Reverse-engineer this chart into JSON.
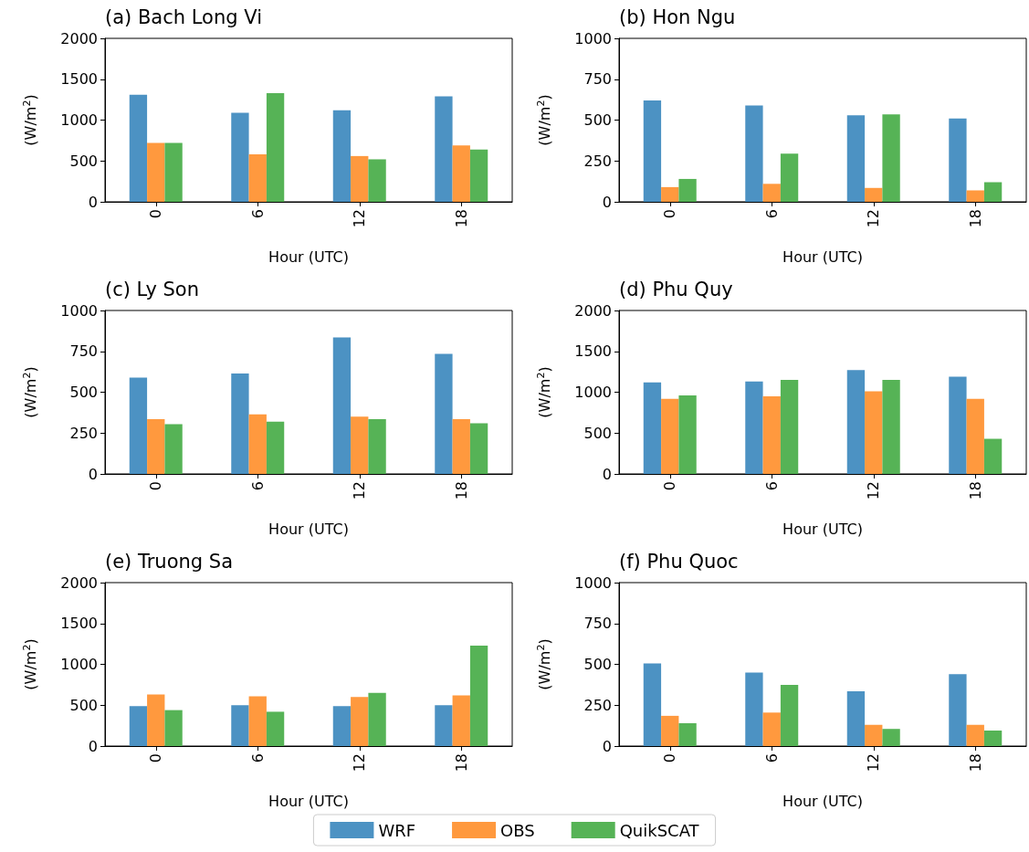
{
  "chart_data": [
    {
      "type": "bar",
      "title": "(a) Bach Long Vi",
      "xlabel": "Hour (UTC)",
      "ylabel": "(W/m$^{2}$)",
      "categories": [
        "0",
        "6",
        "12",
        "18"
      ],
      "ylim": [
        0,
        2000
      ],
      "yticks": [
        0,
        500,
        1000,
        1500,
        2000
      ],
      "grid": false,
      "legend": "bottom",
      "series": [
        {
          "name": "WRF",
          "color": "#4c92c3",
          "values": [
            1310,
            1090,
            1120,
            1290
          ]
        },
        {
          "name": "OBS",
          "color": "#ff993e",
          "values": [
            720,
            580,
            560,
            690
          ]
        },
        {
          "name": "QuikSCAT",
          "color": "#56b356",
          "values": [
            720,
            1330,
            520,
            640
          ]
        }
      ]
    },
    {
      "type": "bar",
      "title": "(b) Hon Ngu",
      "xlabel": "Hour (UTC)",
      "ylabel": "(W/m$^{2}$)",
      "categories": [
        "0",
        "6",
        "12",
        "18"
      ],
      "ylim": [
        0,
        1000
      ],
      "yticks": [
        0,
        250,
        500,
        750,
        1000
      ],
      "grid": false,
      "series": [
        {
          "color": "#4c92c3",
          "values": [
            620,
            590,
            530,
            510
          ]
        },
        {
          "color": "#ff993e",
          "values": [
            90,
            110,
            85,
            70
          ]
        },
        {
          "color": "#56b356",
          "values": [
            140,
            295,
            535,
            120
          ]
        }
      ]
    },
    {
      "type": "bar",
      "title": "(c) Ly Son",
      "xlabel": "Hour (UTC)",
      "ylabel": "(W/m$^{2}$)",
      "categories": [
        "0",
        "6",
        "12",
        "18"
      ],
      "ylim": [
        0,
        1000
      ],
      "yticks": [
        0,
        250,
        500,
        750,
        1000
      ],
      "grid": false,
      "series": [
        {
          "color": "#4c92c3",
          "values": [
            590,
            615,
            835,
            735
          ]
        },
        {
          "color": "#ff993e",
          "values": [
            335,
            365,
            350,
            335
          ]
        },
        {
          "color": "#56b356",
          "values": [
            305,
            320,
            335,
            310
          ]
        }
      ]
    },
    {
      "type": "bar",
      "title": "(d) Phu Quy",
      "xlabel": "Hour (UTC)",
      "ylabel": "(W/m$^{2}$)",
      "categories": [
        "0",
        "6",
        "12",
        "18"
      ],
      "ylim": [
        0,
        2000
      ],
      "yticks": [
        0,
        500,
        1000,
        1500,
        2000
      ],
      "grid": false,
      "series": [
        {
          "color": "#4c92c3",
          "values": [
            1120,
            1130,
            1270,
            1190
          ]
        },
        {
          "color": "#ff993e",
          "values": [
            920,
            950,
            1010,
            920
          ]
        },
        {
          "color": "#56b356",
          "values": [
            960,
            1150,
            1150,
            430
          ]
        }
      ]
    },
    {
      "type": "bar",
      "title": "(e) Truong Sa",
      "xlabel": "Hour (UTC)",
      "ylabel": "(W/m$^{2}$)",
      "categories": [
        "0",
        "6",
        "12",
        "18"
      ],
      "ylim": [
        0,
        2000
      ],
      "yticks": [
        0,
        500,
        1000,
        1500,
        2000
      ],
      "grid": false,
      "series": [
        {
          "color": "#4c92c3",
          "values": [
            490,
            500,
            490,
            500
          ]
        },
        {
          "color": "#ff993e",
          "values": [
            630,
            610,
            600,
            620
          ]
        },
        {
          "color": "#56b356",
          "values": [
            440,
            420,
            650,
            1230
          ]
        }
      ]
    },
    {
      "type": "bar",
      "title": "(f) Phu Quoc",
      "xlabel": "Hour (UTC)",
      "ylabel": "(W/m$^{2}$)",
      "categories": [
        "0",
        "6",
        "12",
        "18"
      ],
      "ylim": [
        0,
        1000
      ],
      "yticks": [
        0,
        250,
        500,
        750,
        1000
      ],
      "grid": false,
      "series": [
        {
          "color": "#4c92c3",
          "values": [
            505,
            450,
            335,
            440
          ]
        },
        {
          "color": "#ff993e",
          "values": [
            185,
            205,
            130,
            130
          ]
        },
        {
          "color": "#56b356",
          "values": [
            140,
            375,
            105,
            95
          ]
        }
      ]
    }
  ]
}
